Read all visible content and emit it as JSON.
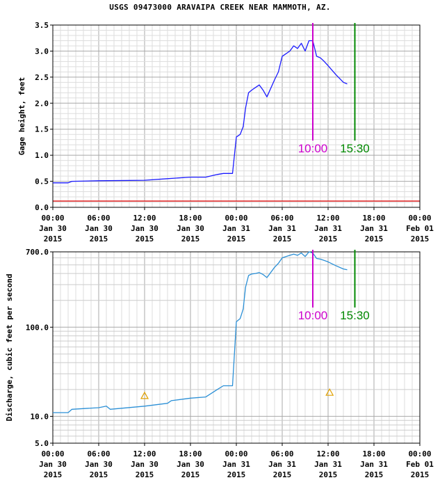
{
  "title": "USGS 09473000 ARAVAIPA CREEK NEAR MAMMOTH, AZ.",
  "x_ticks": [
    {
      "t": 0,
      "lines": [
        "00:00",
        "Jan 30",
        "2015"
      ]
    },
    {
      "t": 6,
      "lines": [
        "06:00",
        "Jan 30",
        "2015"
      ]
    },
    {
      "t": 12,
      "lines": [
        "12:00",
        "Jan 30",
        "2015"
      ]
    },
    {
      "t": 18,
      "lines": [
        "18:00",
        "Jan 30",
        "2015"
      ]
    },
    {
      "t": 24,
      "lines": [
        "00:00",
        "Jan 31",
        "2015"
      ]
    },
    {
      "t": 30,
      "lines": [
        "06:00",
        "Jan 31",
        "2015"
      ]
    },
    {
      "t": 36,
      "lines": [
        "12:00",
        "Jan 31",
        "2015"
      ]
    },
    {
      "t": 42,
      "lines": [
        "18:00",
        "Jan 31",
        "2015"
      ]
    },
    {
      "t": 48,
      "lines": [
        "00:00",
        "Feb 01",
        "2015"
      ]
    }
  ],
  "chart_data": [
    {
      "type": "line",
      "ylabel": "Gage height, feet",
      "xlim": [
        0,
        48
      ],
      "ylim": [
        0,
        3.5
      ],
      "y_ticks": [
        {
          "v": 0.0,
          "label": "0.0"
        },
        {
          "v": 0.5,
          "label": "0.5"
        },
        {
          "v": 1.0,
          "label": "1.0"
        },
        {
          "v": 1.5,
          "label": "1.5"
        },
        {
          "v": 2.0,
          "label": "2.0"
        },
        {
          "v": 2.5,
          "label": "2.5"
        },
        {
          "v": 3.0,
          "label": "3.0"
        },
        {
          "v": 3.5,
          "label": "3.5"
        }
      ],
      "grid": true,
      "line_color": "#1a1aff",
      "reference_line": {
        "y": 0.12,
        "color": "#e02020"
      },
      "x": [
        0,
        2,
        2.5,
        6,
        12,
        15,
        18,
        20,
        21.5,
        22.3,
        23.5,
        24,
        24.5,
        24.9,
        25.2,
        25.6,
        26,
        26.5,
        27,
        27.5,
        28,
        29,
        29.5,
        30,
        30.5,
        31,
        31.5,
        32,
        32.5,
        33,
        33.5,
        34,
        34.5,
        35,
        35.5,
        36,
        37,
        38,
        38.5
      ],
      "y": [
        0.47,
        0.47,
        0.5,
        0.51,
        0.52,
        0.55,
        0.58,
        0.58,
        0.63,
        0.65,
        0.65,
        1.35,
        1.4,
        1.55,
        1.9,
        2.2,
        2.25,
        2.3,
        2.35,
        2.25,
        2.12,
        2.45,
        2.6,
        2.9,
        2.95,
        3.0,
        3.1,
        3.05,
        3.15,
        3.0,
        3.2,
        3.2,
        2.9,
        2.87,
        2.8,
        2.72,
        2.55,
        2.4,
        2.37
      ],
      "annotations": [
        {
          "x": 34,
          "label": "10:00",
          "color": "#cc00cc"
        },
        {
          "x": 39.5,
          "label": "15:30",
          "color": "#008800"
        }
      ]
    },
    {
      "type": "line",
      "ylabel": "Discharge, cubic feet per second",
      "yscale": "log",
      "xlim": [
        0,
        48
      ],
      "ylim": [
        5,
        700
      ],
      "y_ticks": [
        {
          "v": 5,
          "label": "5.0"
        },
        {
          "v": 10,
          "label": "10.0"
        },
        {
          "v": 100,
          "label": "100.0"
        },
        {
          "v": 700,
          "label": "700.0"
        }
      ],
      "grid": true,
      "line_color": "#2a8fd6",
      "x": [
        0,
        2,
        2.5,
        6,
        7,
        7.5,
        12,
        15,
        15.5,
        18,
        20,
        21.5,
        22.3,
        23.5,
        24,
        24.5,
        24.9,
        25.2,
        25.6,
        26,
        26.5,
        27,
        27.5,
        28,
        29,
        29.5,
        30,
        30.5,
        31,
        31.5,
        32,
        32.5,
        33,
        33.5,
        34,
        34.5,
        35,
        35.5,
        36,
        37,
        38,
        38.5
      ],
      "y": [
        11,
        11,
        12,
        12.5,
        13,
        12,
        13,
        14,
        15,
        16,
        16.5,
        20,
        22,
        22,
        115,
        125,
        160,
        280,
        380,
        395,
        400,
        410,
        390,
        360,
        470,
        520,
        600,
        620,
        640,
        660,
        640,
        680,
        620,
        700,
        680,
        590,
        580,
        560,
        540,
        490,
        450,
        440
      ],
      "markers": [
        {
          "x": 12,
          "y": 17,
          "shape": "triangle",
          "color": "#e0a000"
        },
        {
          "x": 36.2,
          "y": 18.5,
          "shape": "triangle",
          "color": "#e0a000"
        }
      ],
      "annotations": [
        {
          "x": 34,
          "label": "10:00",
          "color": "#cc00cc"
        },
        {
          "x": 39.5,
          "label": "15:30",
          "color": "#008800"
        }
      ]
    }
  ]
}
